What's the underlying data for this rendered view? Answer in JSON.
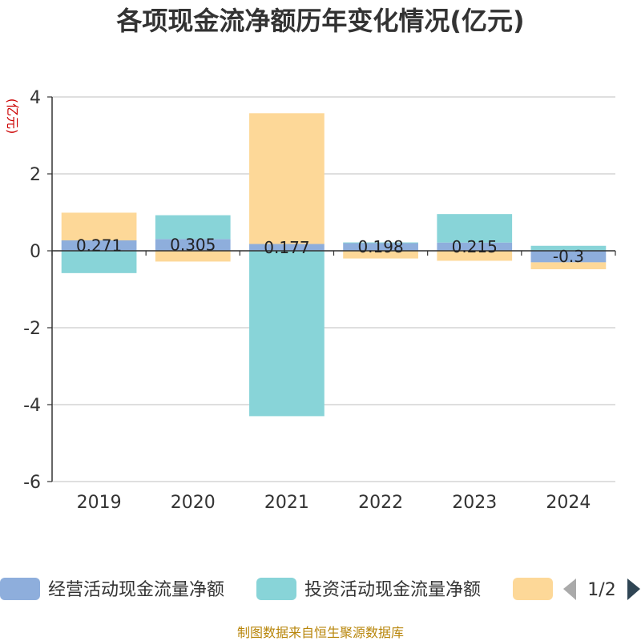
{
  "title": "各项现金流净额历年变化情况(亿元)",
  "footer": "制图数据来自恒生聚源数据库",
  "legend_page": "1/2",
  "chart_data": {
    "type": "bar",
    "stacked": true,
    "categories": [
      "2019",
      "2020",
      "2021",
      "2022",
      "2023",
      "2024"
    ],
    "ylabel": "(亿元)",
    "ylim": [
      -6,
      4
    ],
    "yticks": [
      "4",
      "2",
      "0",
      "-2",
      "-4",
      "-6"
    ],
    "grid": true,
    "legend_placement": "bottom",
    "series": [
      {
        "name": "经营活动现金流量净额",
        "color": "#8eaedc",
        "values": [
          0.271,
          0.305,
          0.177,
          0.198,
          0.215,
          -0.3
        ],
        "labels": [
          "0.271",
          "0.305",
          "0.177",
          "0.198",
          "0.215",
          "-0.3"
        ]
      },
      {
        "name": "投资活动现金流量净额",
        "color": "#88d4d8",
        "values": [
          -0.58,
          0.62,
          -4.3,
          0.02,
          0.74,
          0.13
        ]
      },
      {
        "name": "",
        "color": "#fdd898",
        "values": [
          0.72,
          -0.28,
          3.4,
          -0.2,
          -0.26,
          -0.18
        ]
      }
    ]
  }
}
